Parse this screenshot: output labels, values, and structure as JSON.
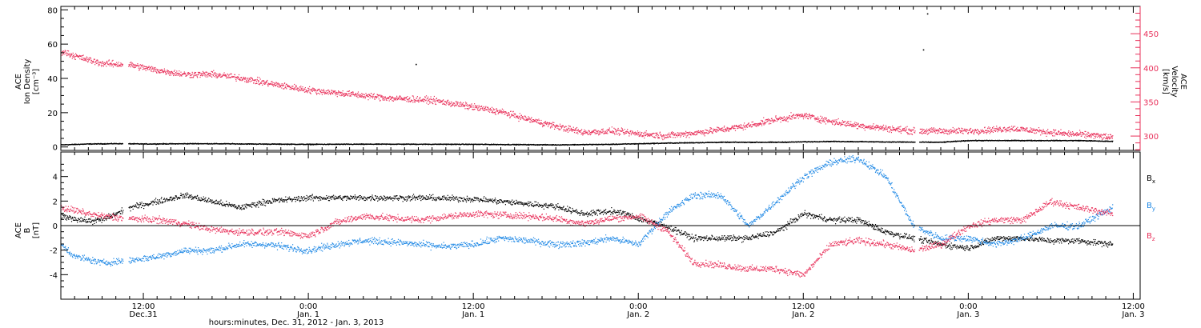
{
  "chart_data": {
    "type": "scatter",
    "xlabel": "hours:minutes, Dec. 31, 2012 - Jan.  3, 2013",
    "x_ticks": [
      {
        "time": "12:00",
        "day": "Dec.31",
        "hour": 12
      },
      {
        "time": "0:00",
        "day": "Jan. 1",
        "hour": 24
      },
      {
        "time": "12:00",
        "day": "Jan. 1",
        "hour": 36
      },
      {
        "time": "0:00",
        "day": "Jan. 2",
        "hour": 48
      },
      {
        "time": "12:00",
        "day": "Jan. 2",
        "hour": 60
      },
      {
        "time": "0:00",
        "day": "Jan. 3",
        "hour": 72
      },
      {
        "time": "12:00",
        "day": "Jan. 3",
        "hour": 84
      }
    ],
    "x_range_hours": [
      6,
      84.5
    ],
    "panels": [
      {
        "ylabel_lines": [
          "ACE",
          "Ion Density",
          "[cm⁻³]"
        ],
        "ylim": [
          -2,
          82
        ],
        "yticks": [
          0,
          20,
          40,
          60,
          80
        ],
        "y2label_lines": [
          "ACE",
          "Velocity",
          "[km/s]"
        ],
        "y2lim": [
          279,
          490
        ],
        "y2ticks": [
          300,
          350,
          400,
          450
        ],
        "series": [
          {
            "name": "density",
            "axis": "left",
            "color": "#000000",
            "points": [
              [
                6,
                1.5
              ],
              [
                8,
                2
              ],
              [
                10,
                2.2
              ],
              [
                12,
                2
              ],
              [
                16,
                2.2
              ],
              [
                20,
                2
              ],
              [
                24,
                1.8
              ],
              [
                30,
                1.9
              ],
              [
                36,
                1.8
              ],
              [
                42,
                1.5
              ],
              [
                46,
                1.8
              ],
              [
                50,
                2.5
              ],
              [
                54,
                3
              ],
              [
                58,
                3
              ],
              [
                62,
                3.5
              ],
              [
                66,
                3.2
              ],
              [
                70,
                3
              ],
              [
                72,
                4
              ],
              [
                76,
                4
              ],
              [
                80,
                4
              ],
              [
                82.5,
                3.5
              ]
            ],
            "gaps": [
              [
                10.5,
                10.9
              ],
              [
                68.1,
                68.4
              ]
            ],
            "outliers": [
              [
                26,
                0.2
              ],
              [
                31.8,
                48.5
              ],
              [
                68.7,
                57
              ],
              [
                69,
                78
              ]
            ]
          },
          {
            "name": "velocity",
            "axis": "right",
            "color": "#e8305a",
            "points": [
              [
                6,
                425
              ],
              [
                7,
                418
              ],
              [
                8,
                412
              ],
              [
                9,
                407
              ],
              [
                11,
                405
              ],
              [
                13,
                397
              ],
              [
                15,
                391
              ],
              [
                17,
                391
              ],
              [
                19,
                386
              ],
              [
                21,
                378
              ],
              [
                24,
                368
              ],
              [
                27,
                362
              ],
              [
                30,
                356
              ],
              [
                33,
                353
              ],
              [
                36,
                343
              ],
              [
                38,
                336
              ],
              [
                40,
                325
              ],
              [
                42,
                315
              ],
              [
                44,
                306
              ],
              [
                46,
                308
              ],
              [
                48,
                304
              ],
              [
                50,
                301
              ],
              [
                52,
                305
              ],
              [
                54,
                310
              ],
              [
                56,
                316
              ],
              [
                58,
                325
              ],
              [
                60,
                331
              ],
              [
                62,
                322
              ],
              [
                64,
                316
              ],
              [
                66,
                312
              ],
              [
                68,
                308
              ],
              [
                72,
                308
              ],
              [
                74,
                310
              ],
              [
                75,
                312
              ],
              [
                77,
                308
              ],
              [
                79,
                304
              ],
              [
                81,
                302
              ],
              [
                82.5,
                298
              ]
            ],
            "gaps": [
              [
                10.5,
                10.9
              ],
              [
                68.1,
                68.4
              ]
            ],
            "jitter": 7
          }
        ]
      },
      {
        "ylabel_lines": [
          "ACE",
          "B",
          "[nT]"
        ],
        "ylim": [
          -6,
          6
        ],
        "yticks": [
          -4,
          -2,
          0,
          2,
          4
        ],
        "zero_line": true,
        "series": [
          {
            "name": "B",
            "sub": "x",
            "color": "#000000",
            "points": [
              [
                6,
                0.8
              ],
              [
                8,
                0.4
              ],
              [
                9,
                0.5
              ],
              [
                11,
                1.5
              ],
              [
                13,
                2
              ],
              [
                15,
                2.5
              ],
              [
                17,
                2
              ],
              [
                19,
                1.5
              ],
              [
                21,
                2
              ],
              [
                24,
                2.3
              ],
              [
                28,
                2.3
              ],
              [
                32,
                2.3
              ],
              [
                36,
                2.2
              ],
              [
                40,
                1.8
              ],
              [
                42,
                1.6
              ],
              [
                44,
                1
              ],
              [
                46,
                1.2
              ],
              [
                47,
                1
              ],
              [
                48,
                0.6
              ],
              [
                50,
                0
              ],
              [
                52,
                -1
              ],
              [
                54,
                -1
              ],
              [
                56,
                -1
              ],
              [
                58,
                -0.5
              ],
              [
                60,
                1
              ],
              [
                62,
                0.5
              ],
              [
                64,
                0.5
              ],
              [
                66,
                -0.5
              ],
              [
                68,
                -1
              ],
              [
                70,
                -1.5
              ],
              [
                72,
                -1.8
              ],
              [
                74,
                -1
              ],
              [
                76,
                -1
              ],
              [
                78,
                -1.2
              ],
              [
                80,
                -1.2
              ],
              [
                82.5,
                -1.5
              ]
            ],
            "gaps": [
              [
                10.5,
                10.9
              ],
              [
                68.1,
                68.4
              ]
            ],
            "jitter": 0.35
          },
          {
            "name": "B",
            "sub": "y",
            "color": "#1e88e5",
            "points": [
              [
                6,
                -1.5
              ],
              [
                7,
                -2.5
              ],
              [
                9,
                -3
              ],
              [
                11,
                -2.8
              ],
              [
                13,
                -2.5
              ],
              [
                15,
                -2
              ],
              [
                17,
                -2
              ],
              [
                19,
                -1.5
              ],
              [
                21,
                -1.5
              ],
              [
                24,
                -2
              ],
              [
                26,
                -1.5
              ],
              [
                28,
                -1.2
              ],
              [
                30,
                -1.3
              ],
              [
                32,
                -1.5
              ],
              [
                34,
                -1.7
              ],
              [
                36,
                -1.5
              ],
              [
                38,
                -1
              ],
              [
                40,
                -1.2
              ],
              [
                42,
                -1.5
              ],
              [
                44,
                -1.4
              ],
              [
                46,
                -1
              ],
              [
                48,
                -1.5
              ],
              [
                50,
                1
              ],
              [
                52,
                2.5
              ],
              [
                54,
                2.5
              ],
              [
                56,
                0
              ],
              [
                58,
                2
              ],
              [
                60,
                4
              ],
              [
                62,
                5.2
              ],
              [
                64,
                5.5
              ],
              [
                66,
                4
              ],
              [
                68,
                0
              ],
              [
                70,
                -1
              ],
              [
                72,
                -1
              ],
              [
                74,
                -1.5
              ],
              [
                76,
                -1
              ],
              [
                78,
                0
              ],
              [
                80,
                0
              ],
              [
                82.5,
                1.5
              ]
            ],
            "gaps": [
              [
                10.5,
                10.9
              ],
              [
                68.1,
                68.4
              ]
            ],
            "jitter": 0.4
          },
          {
            "name": "B",
            "sub": "z",
            "color": "#e8305a",
            "points": [
              [
                6,
                1.5
              ],
              [
                8,
                1
              ],
              [
                9,
                0.8
              ],
              [
                11,
                0.6
              ],
              [
                13,
                0.5
              ],
              [
                15,
                0.2
              ],
              [
                17,
                -0.3
              ],
              [
                19,
                -0.5
              ],
              [
                22,
                -0.5
              ],
              [
                24,
                -0.8
              ],
              [
                26,
                0.3
              ],
              [
                28,
                0.8
              ],
              [
                32,
                0.5
              ],
              [
                36,
                1
              ],
              [
                40,
                0.8
              ],
              [
                42,
                0.6
              ],
              [
                44,
                0.2
              ],
              [
                46,
                0.6
              ],
              [
                48,
                0.8
              ],
              [
                50,
                -0.3
              ],
              [
                52,
                -3
              ],
              [
                54,
                -3.2
              ],
              [
                56,
                -3.5
              ],
              [
                58,
                -3.5
              ],
              [
                60,
                -4
              ],
              [
                62,
                -1.5
              ],
              [
                64,
                -1.2
              ],
              [
                66,
                -1.5
              ],
              [
                68,
                -2
              ],
              [
                70,
                -1.5
              ],
              [
                72,
                0
              ],
              [
                74,
                0.5
              ],
              [
                76,
                0.5
              ],
              [
                78,
                2
              ],
              [
                80,
                1.5
              ],
              [
                82.5,
                1
              ]
            ],
            "gaps": [
              [
                10.5,
                10.9
              ],
              [
                68.1,
                68.4
              ]
            ],
            "jitter": 0.4
          }
        ]
      }
    ]
  }
}
